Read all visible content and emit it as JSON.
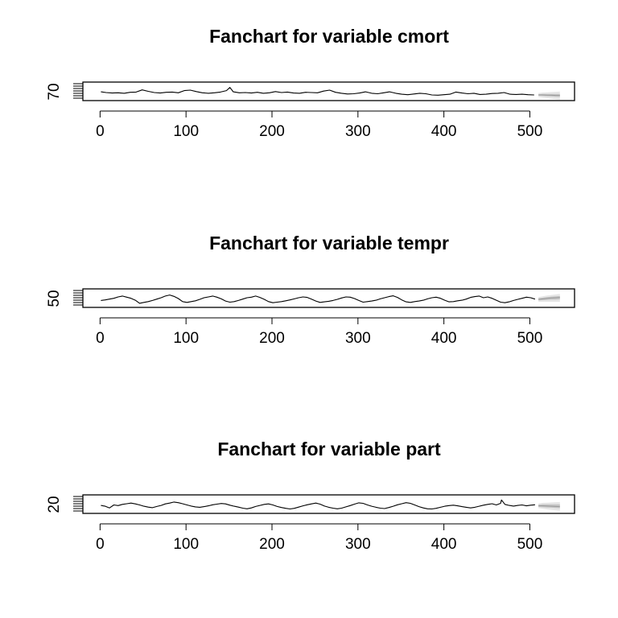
{
  "chart_data": [
    {
      "type": "line",
      "title": "Fanchart for variable cmort",
      "y_tick_labels": [
        "70"
      ],
      "x_ticks": [
        0,
        100,
        200,
        300,
        400,
        500
      ],
      "xlim": [
        -20,
        552
      ],
      "ylim": [
        62,
        138
      ],
      "series": [
        {
          "x": [
            1,
            7,
            14,
            21,
            28,
            35,
            42,
            49,
            56,
            63,
            70,
            77,
            84,
            91,
            98,
            105,
            112,
            119,
            126,
            133,
            140,
            147,
            151,
            155,
            162,
            169,
            176,
            183,
            190,
            197,
            204,
            211,
            218,
            225,
            232,
            239,
            246,
            253,
            260,
            267,
            274,
            281,
            288,
            295,
            302,
            309,
            316,
            323,
            330,
            337,
            344,
            351,
            358,
            365,
            372,
            379,
            386,
            393,
            400,
            407,
            414,
            421,
            428,
            435,
            442,
            449,
            456,
            463,
            470,
            477,
            484,
            491,
            498,
            505
          ],
          "values": [
            98,
            95,
            93,
            94,
            92,
            96,
            97,
            106,
            100,
            95,
            93,
            96,
            97,
            94,
            103,
            105,
            99,
            94,
            92,
            94,
            97,
            103,
            116,
            98,
            94,
            95,
            93,
            96,
            92,
            94,
            99,
            95,
            97,
            93,
            92,
            96,
            95,
            94,
            101,
            105,
            96,
            92,
            89,
            90,
            93,
            98,
            92,
            90,
            94,
            98,
            92,
            88,
            86,
            89,
            92,
            90,
            85,
            84,
            86,
            88,
            97,
            93,
            90,
            92,
            87,
            88,
            91,
            92,
            95,
            88,
            87,
            88,
            86,
            85
          ]
        }
      ],
      "forecast": {
        "x": [
          510,
          515,
          520,
          525,
          530,
          535
        ],
        "median": [
          85,
          85,
          84,
          84,
          83,
          83
        ],
        "inner": [
          [
            82,
            88
          ],
          [
            81,
            89
          ],
          [
            80,
            89
          ],
          [
            79,
            89
          ],
          [
            78,
            89
          ],
          [
            77,
            89
          ]
        ],
        "outer": [
          [
            77,
            93
          ],
          [
            74,
            95
          ],
          [
            72,
            96
          ],
          [
            70,
            97
          ],
          [
            68,
            98
          ],
          [
            66,
            99
          ]
        ]
      }
    },
    {
      "type": "line",
      "title": "Fanchart for variable tempr",
      "y_tick_labels": [
        "50"
      ],
      "x_ticks": [
        0,
        100,
        200,
        300,
        400,
        500
      ],
      "xlim": [
        -20,
        552
      ],
      "ylim": [
        37,
        104
      ],
      "series": [
        {
          "x": [
            1,
            6,
            11,
            16,
            21,
            26,
            31,
            36,
            41,
            46,
            51,
            56,
            61,
            66,
            71,
            76,
            81,
            86,
            91,
            96,
            101,
            106,
            111,
            116,
            121,
            126,
            131,
            136,
            141,
            146,
            151,
            156,
            161,
            166,
            171,
            176,
            181,
            186,
            191,
            196,
            201,
            206,
            211,
            216,
            221,
            226,
            231,
            236,
            241,
            246,
            251,
            256,
            261,
            266,
            271,
            276,
            281,
            286,
            291,
            296,
            301,
            306,
            311,
            316,
            321,
            326,
            331,
            336,
            341,
            346,
            351,
            356,
            361,
            366,
            371,
            376,
            381,
            386,
            391,
            396,
            401,
            406,
            411,
            416,
            421,
            426,
            431,
            436,
            441,
            446,
            451,
            456,
            461,
            466,
            471,
            476,
            481,
            486,
            491,
            496,
            501,
            506
          ],
          "values": [
            62,
            64,
            67,
            70,
            75,
            78,
            74,
            70,
            63,
            52,
            55,
            58,
            62,
            67,
            72,
            78,
            82,
            77,
            69,
            58,
            55,
            58,
            61,
            66,
            72,
            75,
            78,
            74,
            68,
            60,
            56,
            58,
            62,
            67,
            72,
            74,
            78,
            73,
            66,
            58,
            54,
            56,
            58,
            61,
            64,
            68,
            72,
            75,
            73,
            67,
            60,
            55,
            57,
            59,
            62,
            66,
            71,
            75,
            74,
            69,
            62,
            56,
            58,
            60,
            63,
            68,
            72,
            76,
            79,
            73,
            64,
            57,
            55,
            58,
            60,
            63,
            68,
            72,
            74,
            70,
            63,
            57,
            58,
            61,
            63,
            67,
            73,
            76,
            78,
            72,
            75,
            70,
            63,
            56,
            54,
            57,
            62,
            66,
            70,
            74,
            72,
            67
          ]
        }
      ],
      "forecast": {
        "x": [
          510,
          515,
          520,
          525,
          530,
          535
        ],
        "median": [
          66,
          68,
          70,
          71,
          72,
          73
        ],
        "inner": [
          [
            62,
            70
          ],
          [
            63,
            72
          ],
          [
            64,
            74
          ],
          [
            65,
            76
          ],
          [
            65,
            77
          ],
          [
            66,
            78
          ]
        ],
        "outer": [
          [
            57,
            74
          ],
          [
            57,
            77
          ],
          [
            57,
            80
          ],
          [
            57,
            82
          ],
          [
            57,
            84
          ],
          [
            57,
            86
          ]
        ]
      }
    },
    {
      "type": "line",
      "title": "Fanchart for variable part",
      "y_tick_labels": [
        "20"
      ],
      "x_ticks": [
        0,
        100,
        200,
        300,
        400,
        500
      ],
      "xlim": [
        -20,
        552
      ],
      "ylim": [
        12,
        100
      ],
      "series": [
        {
          "x": [
            1,
            6,
            11,
            16,
            21,
            26,
            31,
            36,
            41,
            46,
            51,
            56,
            61,
            66,
            71,
            76,
            81,
            86,
            91,
            96,
            101,
            106,
            111,
            116,
            121,
            126,
            131,
            136,
            141,
            146,
            151,
            156,
            161,
            166,
            171,
            176,
            181,
            186,
            191,
            196,
            201,
            206,
            211,
            216,
            221,
            226,
            231,
            236,
            241,
            246,
            251,
            256,
            261,
            266,
            271,
            276,
            281,
            286,
            291,
            296,
            301,
            306,
            311,
            316,
            321,
            326,
            331,
            336,
            341,
            346,
            351,
            356,
            361,
            366,
            371,
            376,
            381,
            386,
            391,
            396,
            401,
            406,
            411,
            416,
            421,
            426,
            431,
            436,
            441,
            446,
            451,
            456,
            461,
            466,
            467,
            471,
            476,
            481,
            486,
            491,
            496,
            501,
            506
          ],
          "values": [
            50,
            46,
            38,
            52,
            49,
            55,
            58,
            61,
            57,
            52,
            46,
            42,
            39,
            45,
            50,
            57,
            61,
            66,
            63,
            58,
            52,
            47,
            43,
            41,
            44,
            48,
            53,
            56,
            59,
            57,
            51,
            46,
            42,
            37,
            34,
            38,
            45,
            50,
            55,
            57,
            52,
            45,
            40,
            36,
            33,
            36,
            42,
            48,
            53,
            57,
            61,
            56,
            47,
            41,
            37,
            34,
            37,
            43,
            49,
            56,
            62,
            60,
            52,
            46,
            41,
            37,
            35,
            40,
            46,
            53,
            58,
            63,
            60,
            52,
            44,
            38,
            34,
            33,
            36,
            41,
            46,
            49,
            51,
            48,
            44,
            41,
            38,
            41,
            46,
            51,
            55,
            58,
            52,
            60,
            76,
            55,
            50,
            47,
            50,
            52,
            48,
            51,
            53
          ]
        }
      ],
      "forecast": {
        "x": [
          510,
          515,
          520,
          525,
          530,
          535
        ],
        "median": [
          48,
          48,
          47,
          46,
          45,
          44
        ],
        "inner": [
          [
            43,
            53
          ],
          [
            41,
            55
          ],
          [
            40,
            55
          ],
          [
            39,
            55
          ],
          [
            38,
            55
          ],
          [
            37,
            55
          ]
        ],
        "outer": [
          [
            37,
            59
          ],
          [
            34,
            62
          ],
          [
            31,
            63
          ],
          [
            29,
            64
          ],
          [
            27,
            65
          ],
          [
            25,
            66
          ]
        ]
      }
    }
  ]
}
